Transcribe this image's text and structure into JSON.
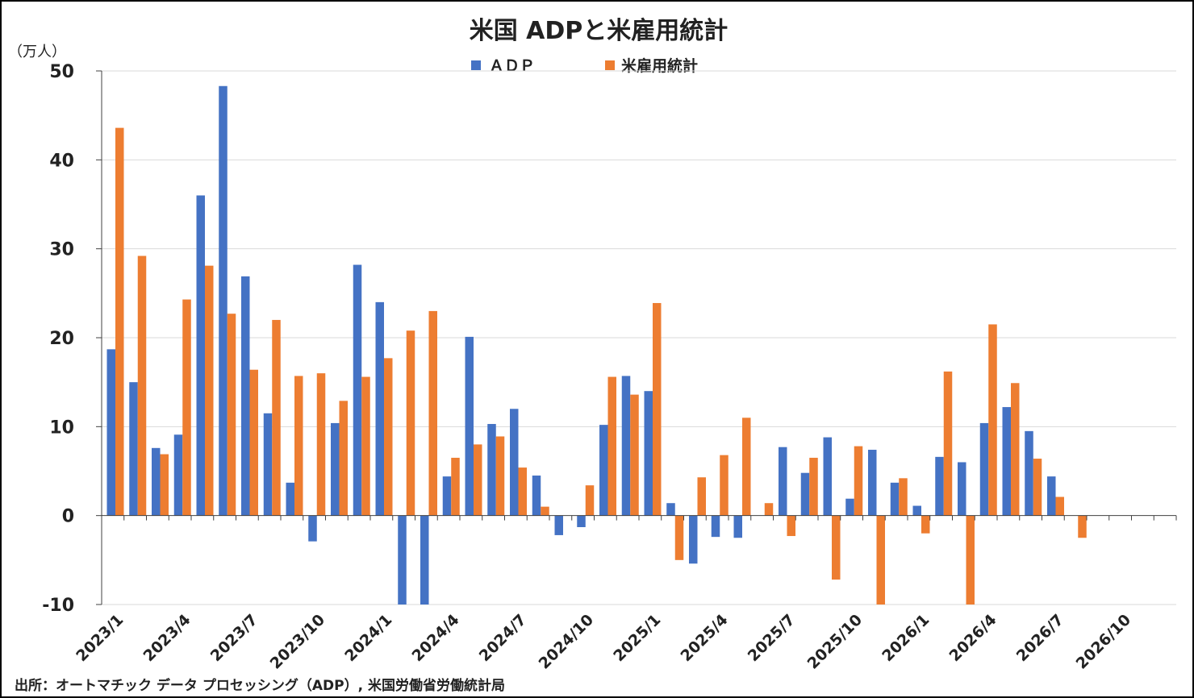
{
  "chart_data": {
    "type": "bar",
    "title": "米国 ADPと米雇用統計",
    "ylabel": "（万人）",
    "ylim": [
      -10,
      50
    ],
    "yticks": [
      "50",
      "40",
      "30",
      "20",
      "10",
      "0",
      "-10"
    ],
    "ytick_negative_color": "#ff0000",
    "legend_position": "top-center",
    "grid": true,
    "x_start": "2023/1",
    "x_labels": [
      "2023/1",
      "2023/4",
      "2023/7",
      "2023/10",
      "2024/1",
      "2024/4",
      "2024/7",
      "2024/10",
      "2025/1",
      "2025/4",
      "2025/7",
      "2025/10",
      "2026/1",
      "2026/4",
      "2026/7",
      "2026/10"
    ],
    "series": [
      {
        "name": "ＡＤＰ",
        "color": "#4472c4",
        "values": [
          18.7,
          15.0,
          7.6,
          9.1,
          36.0,
          48.3,
          26.9,
          11.5,
          3.7,
          -2.9,
          10.4,
          28.2,
          24.0,
          -11.0,
          -11.0,
          4.4,
          20.1,
          10.3,
          12.0,
          4.5,
          -2.2,
          -1.3,
          10.2,
          15.7,
          14.0,
          1.4,
          -5.4,
          -2.4,
          -2.5,
          0,
          7.7,
          4.8,
          8.8,
          1.9,
          7.4,
          3.7,
          1.1,
          6.6,
          6.0,
          10.4,
          12.2,
          9.5,
          4.4
        ]
      },
      {
        "name": "米雇用統計",
        "color": "#ed7d31",
        "values": [
          43.6,
          29.2,
          6.9,
          24.3,
          28.1,
          22.7,
          16.4,
          22.0,
          15.7,
          16.0,
          12.9,
          15.6,
          17.7,
          20.8,
          23.0,
          6.5,
          8.0,
          8.9,
          5.4,
          1.0,
          0,
          3.4,
          15.6,
          13.6,
          23.9,
          -5.0,
          4.3,
          6.8,
          11.0,
          1.4,
          -2.3,
          6.5,
          -7.2,
          7.8,
          -10.5,
          4.2,
          -2.0,
          16.2,
          -10.5,
          21.5,
          14.9,
          6.4,
          2.1,
          -2.5
        ]
      }
    ]
  },
  "source_note": "出所：オートマチック データ プロセッシング（ADP）, 米国労働省労働統計局"
}
